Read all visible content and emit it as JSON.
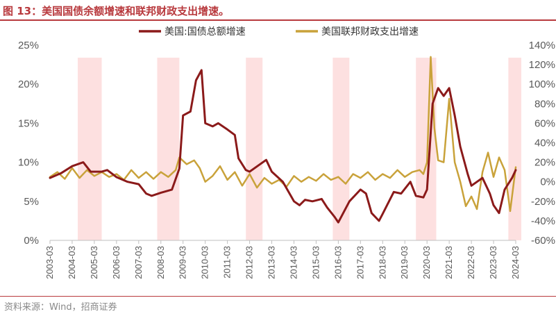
{
  "figure": {
    "title": "图 13：美国国债余额增速和联邦财政支出增速。",
    "source": "资料来源：Wind，招商证券"
  },
  "colors": {
    "title": "#b8393d",
    "debt_series": "#8b1a1a",
    "spending_series": "#c9a23a",
    "shade": "#fde0e0"
  },
  "chart_data": {
    "type": "line",
    "legend_position": "top",
    "grid": false,
    "y_left": {
      "min": 0,
      "max": 25,
      "ticks": [
        "0%",
        "5%",
        "10%",
        "15%",
        "20%",
        "25%"
      ]
    },
    "y_right": {
      "min": -60,
      "max": 140,
      "ticks": [
        "-60%",
        "-40%",
        "-20%",
        "0%",
        "20%",
        "40%",
        "60%",
        "80%",
        "100%",
        "120%",
        "140%"
      ]
    },
    "x_ticks": [
      "2003-03",
      "2004-03",
      "2005-03",
      "2006-03",
      "2007-03",
      "2008-03",
      "2009-03",
      "2010-03",
      "2011-03",
      "2012-03",
      "2013-03",
      "2014-03",
      "2015-03",
      "2016-03",
      "2017-03",
      "2018-03",
      "2019-03",
      "2020-03",
      "2021-03",
      "2022-03",
      "2023-03",
      "2024-03"
    ],
    "shaded_periods": [
      {
        "start": "2004-06",
        "end": "2005-07"
      },
      {
        "start": "2008-01",
        "end": "2009-01"
      },
      {
        "start": "2012-01",
        "end": "2012-10"
      },
      {
        "start": "2015-12",
        "end": "2016-09"
      },
      {
        "start": "2019-09",
        "end": "2020-08"
      },
      {
        "start": "2023-11",
        "end": "2024-06"
      }
    ],
    "series": [
      {
        "name": "美国:国债总额增速",
        "axis": "left",
        "points": [
          [
            "2003-03",
            8.0
          ],
          [
            "2003-09",
            8.6
          ],
          [
            "2004-03",
            9.5
          ],
          [
            "2004-09",
            10.0
          ],
          [
            "2005-01",
            8.8
          ],
          [
            "2005-07",
            8.8
          ],
          [
            "2005-10",
            9.0
          ],
          [
            "2006-03",
            8.1
          ],
          [
            "2006-09",
            7.5
          ],
          [
            "2007-03",
            7.2
          ],
          [
            "2007-07",
            6.0
          ],
          [
            "2007-10",
            5.7
          ],
          [
            "2008-03",
            6.1
          ],
          [
            "2008-09",
            6.5
          ],
          [
            "2009-01",
            9.2
          ],
          [
            "2009-03",
            16.0
          ],
          [
            "2009-07",
            16.5
          ],
          [
            "2009-10",
            20.5
          ],
          [
            "2010-01",
            21.8
          ],
          [
            "2010-03",
            15.0
          ],
          [
            "2010-07",
            14.6
          ],
          [
            "2010-10",
            15.0
          ],
          [
            "2011-03",
            14.2
          ],
          [
            "2011-07",
            13.5
          ],
          [
            "2011-09",
            10.5
          ],
          [
            "2012-01",
            9.0
          ],
          [
            "2012-03",
            8.8
          ],
          [
            "2012-09",
            9.8
          ],
          [
            "2012-12",
            10.3
          ],
          [
            "2013-03",
            8.8
          ],
          [
            "2013-09",
            7.5
          ],
          [
            "2014-03",
            5.0
          ],
          [
            "2014-06",
            4.5
          ],
          [
            "2014-09",
            5.2
          ],
          [
            "2015-01",
            5.0
          ],
          [
            "2015-06",
            5.3
          ],
          [
            "2015-09",
            4.2
          ],
          [
            "2016-01",
            3.0
          ],
          [
            "2016-03",
            2.3
          ],
          [
            "2016-09",
            5.0
          ],
          [
            "2017-03",
            6.5
          ],
          [
            "2017-06",
            6.0
          ],
          [
            "2017-09",
            3.5
          ],
          [
            "2018-01",
            2.5
          ],
          [
            "2018-03",
            3.4
          ],
          [
            "2018-09",
            6.2
          ],
          [
            "2019-01",
            6.0
          ],
          [
            "2019-06",
            7.5
          ],
          [
            "2019-09",
            5.7
          ],
          [
            "2020-01",
            5.5
          ],
          [
            "2020-03",
            6.5
          ],
          [
            "2020-06",
            17.5
          ],
          [
            "2020-09",
            19.5
          ],
          [
            "2020-12",
            18.5
          ],
          [
            "2021-03",
            19.5
          ],
          [
            "2021-06",
            16.0
          ],
          [
            "2021-09",
            12.0
          ],
          [
            "2022-01",
            8.5
          ],
          [
            "2022-03",
            7.0
          ],
          [
            "2022-09",
            8.0
          ],
          [
            "2023-01",
            6.0
          ],
          [
            "2023-03",
            4.5
          ],
          [
            "2023-06",
            3.5
          ],
          [
            "2023-09",
            6.5
          ],
          [
            "2024-01",
            8.0
          ],
          [
            "2024-03",
            9.0
          ]
        ]
      },
      {
        "name": "美国联邦财政支出增速",
        "axis": "right",
        "points": [
          [
            "2003-03",
            5
          ],
          [
            "2003-07",
            10
          ],
          [
            "2003-11",
            3
          ],
          [
            "2004-03",
            14
          ],
          [
            "2004-07",
            4
          ],
          [
            "2004-11",
            12
          ],
          [
            "2005-03",
            6
          ],
          [
            "2005-07",
            10
          ],
          [
            "2005-11",
            5
          ],
          [
            "2006-03",
            8
          ],
          [
            "2006-07",
            2
          ],
          [
            "2006-11",
            12
          ],
          [
            "2007-03",
            4
          ],
          [
            "2007-07",
            10
          ],
          [
            "2007-11",
            3
          ],
          [
            "2008-03",
            10
          ],
          [
            "2008-07",
            5
          ],
          [
            "2008-11",
            12
          ],
          [
            "2009-01",
            25
          ],
          [
            "2009-05",
            18
          ],
          [
            "2009-09",
            22
          ],
          [
            "2009-12",
            14
          ],
          [
            "2010-03",
            0
          ],
          [
            "2010-07",
            6
          ],
          [
            "2010-11",
            16
          ],
          [
            "2011-03",
            2
          ],
          [
            "2011-07",
            10
          ],
          [
            "2011-11",
            -4
          ],
          [
            "2012-03",
            8
          ],
          [
            "2012-07",
            -6
          ],
          [
            "2012-11",
            4
          ],
          [
            "2013-03",
            -2
          ],
          [
            "2013-07",
            2
          ],
          [
            "2013-11",
            -5
          ],
          [
            "2014-03",
            6
          ],
          [
            "2014-07",
            0
          ],
          [
            "2014-11",
            5
          ],
          [
            "2015-03",
            1
          ],
          [
            "2015-07",
            8
          ],
          [
            "2015-11",
            2
          ],
          [
            "2016-03",
            5
          ],
          [
            "2016-07",
            -2
          ],
          [
            "2016-11",
            8
          ],
          [
            "2017-03",
            4
          ],
          [
            "2017-07",
            10
          ],
          [
            "2017-11",
            2
          ],
          [
            "2018-03",
            8
          ],
          [
            "2018-07",
            4
          ],
          [
            "2018-11",
            12
          ],
          [
            "2019-03",
            5
          ],
          [
            "2019-07",
            10
          ],
          [
            "2019-11",
            12
          ],
          [
            "2020-01",
            8
          ],
          [
            "2020-03",
            20
          ],
          [
            "2020-05",
            128
          ],
          [
            "2020-07",
            55
          ],
          [
            "2020-09",
            22
          ],
          [
            "2020-12",
            20
          ],
          [
            "2021-03",
            85
          ],
          [
            "2021-06",
            20
          ],
          [
            "2021-09",
            0
          ],
          [
            "2021-12",
            -25
          ],
          [
            "2022-03",
            -15
          ],
          [
            "2022-06",
            -28
          ],
          [
            "2022-09",
            10
          ],
          [
            "2022-12",
            30
          ],
          [
            "2023-03",
            5
          ],
          [
            "2023-06",
            25
          ],
          [
            "2023-09",
            12
          ],
          [
            "2023-12",
            -30
          ],
          [
            "2024-03",
            15
          ]
        ]
      }
    ]
  }
}
